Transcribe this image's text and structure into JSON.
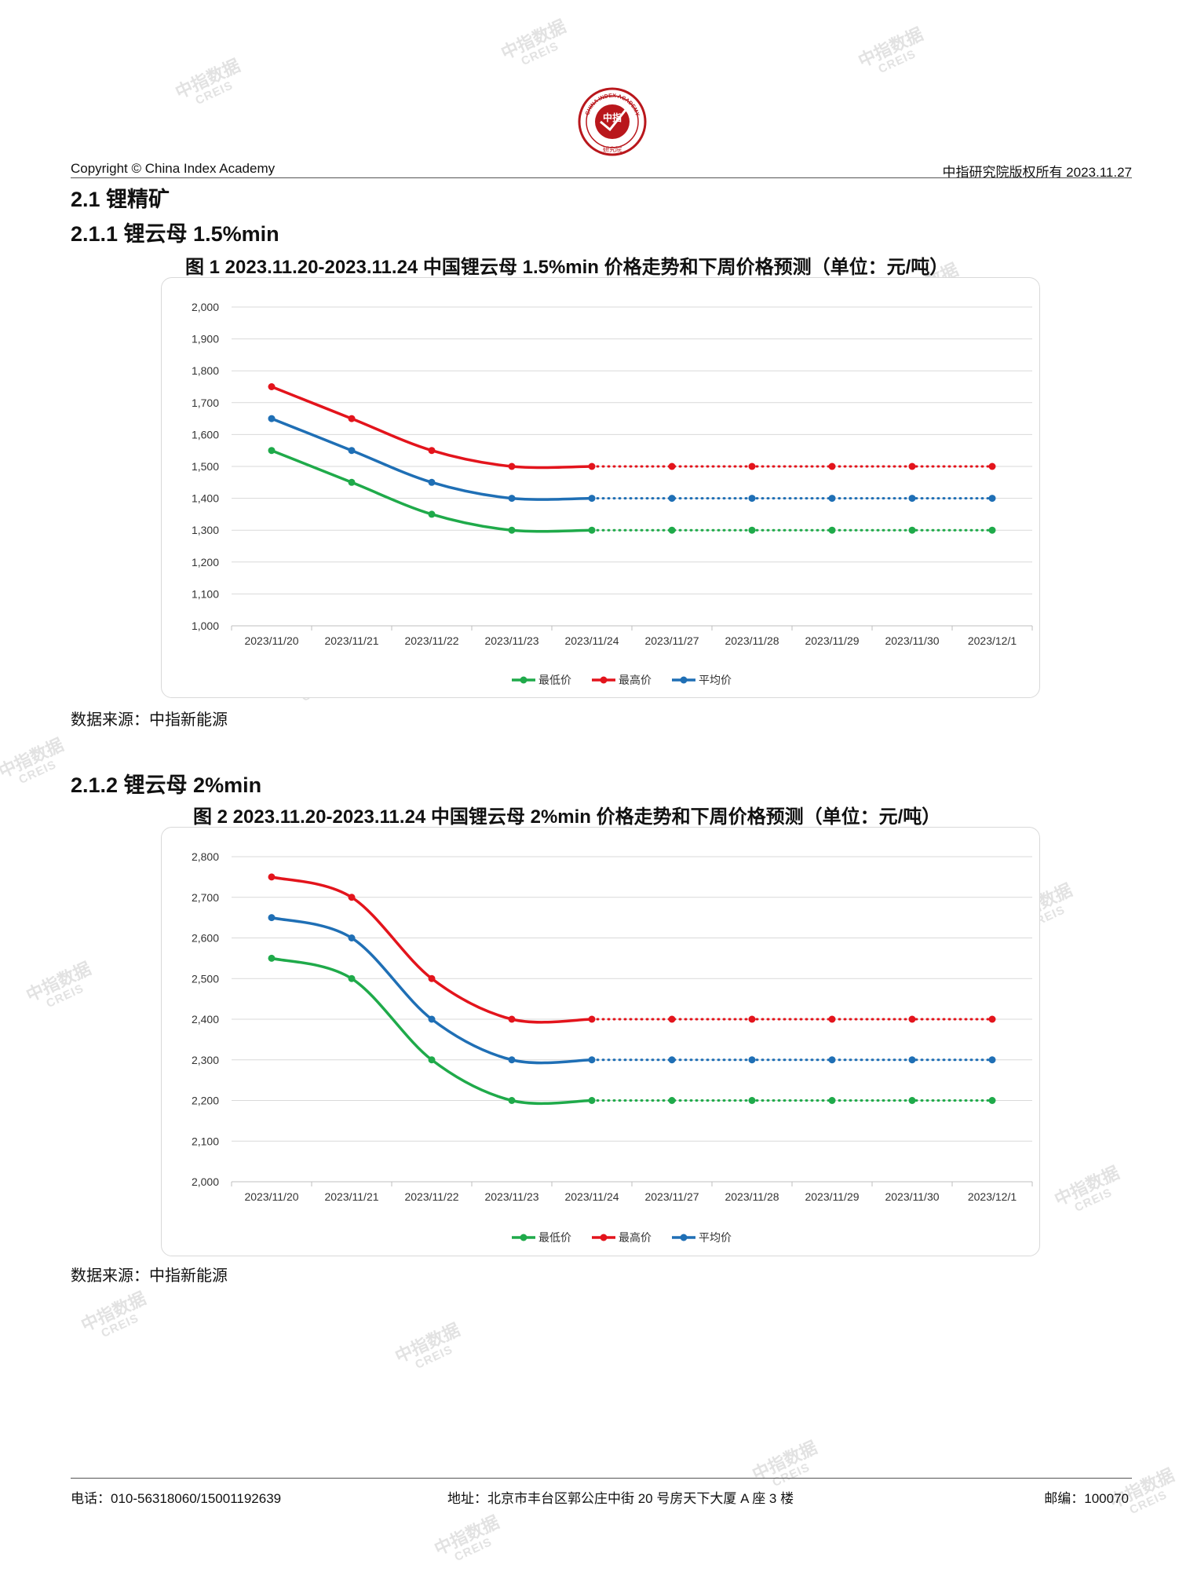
{
  "header": {
    "copyright": "Copyright © China Index Academy",
    "rights": "中指研究院版权所有 2023.11.27",
    "logo_top_text": "CHINA INDEX ACADEMY",
    "logo_center_text": "中指",
    "logo_bottom_text": "研究院"
  },
  "watermark": {
    "line1": "中指数据",
    "line2": "CREIS"
  },
  "section": {
    "title": "2.1 锂精矿",
    "sub1": "2.1.1 锂云母 1.5%min",
    "sub2": "2.1.2 锂云母 2%min"
  },
  "figures": [
    {
      "title": "图 1 2023.11.20-2023.11.24 中国锂云母 1.5%min 价格走势和下周价格预测（单位：元/吨）",
      "source": "数据来源：中指新能源"
    },
    {
      "title": "图 2 2023.11.20-2023.11.24 中国锂云母 2%min 价格走势和下周价格预测（单位：元/吨）",
      "source": "数据来源：中指新能源"
    }
  ],
  "chart_data": [
    {
      "type": "line",
      "categories": [
        "2023/11/20",
        "2023/11/21",
        "2023/11/22",
        "2023/11/23",
        "2023/11/24",
        "2023/11/27",
        "2023/11/28",
        "2023/11/29",
        "2023/11/30",
        "2023/12/1"
      ],
      "ylim": [
        1000,
        2000
      ],
      "yticks": [
        "1,000",
        "1,100",
        "1,200",
        "1,300",
        "1,400",
        "1,500",
        "1,600",
        "1,700",
        "1,800",
        "1,900",
        "2,000"
      ],
      "ytick_values": [
        1000,
        1100,
        1200,
        1300,
        1400,
        1500,
        1600,
        1700,
        1800,
        1900,
        2000
      ],
      "forecast_start_index": 4,
      "grid": true,
      "legend_position": "bottom",
      "series": [
        {
          "name": "最低价",
          "color": "#1faa4a",
          "values": [
            1550,
            1450,
            1350,
            1300,
            1300,
            1300,
            1300,
            1300,
            1300,
            1300
          ]
        },
        {
          "name": "最高价",
          "color": "#e3141c",
          "values": [
            1750,
            1650,
            1550,
            1500,
            1500,
            1500,
            1500,
            1500,
            1500,
            1500
          ]
        },
        {
          "name": "平均价",
          "color": "#1f6fb5",
          "values": [
            1650,
            1550,
            1450,
            1400,
            1400,
            1400,
            1400,
            1400,
            1400,
            1400
          ]
        }
      ]
    },
    {
      "type": "line",
      "categories": [
        "2023/11/20",
        "2023/11/21",
        "2023/11/22",
        "2023/11/23",
        "2023/11/24",
        "2023/11/27",
        "2023/11/28",
        "2023/11/29",
        "2023/11/30",
        "2023/12/1"
      ],
      "ylim": [
        2000,
        2800
      ],
      "yticks": [
        "2,000",
        "2,100",
        "2,200",
        "2,300",
        "2,400",
        "2,500",
        "2,600",
        "2,700",
        "2,800"
      ],
      "ytick_values": [
        2000,
        2100,
        2200,
        2300,
        2400,
        2500,
        2600,
        2700,
        2800
      ],
      "forecast_start_index": 4,
      "grid": true,
      "legend_position": "bottom",
      "series": [
        {
          "name": "最低价",
          "color": "#1faa4a",
          "values": [
            2550,
            2500,
            2300,
            2200,
            2200,
            2200,
            2200,
            2200,
            2200,
            2200
          ]
        },
        {
          "name": "最高价",
          "color": "#e3141c",
          "values": [
            2750,
            2700,
            2500,
            2400,
            2400,
            2400,
            2400,
            2400,
            2400,
            2400
          ]
        },
        {
          "name": "平均价",
          "color": "#1f6fb5",
          "values": [
            2650,
            2600,
            2400,
            2300,
            2300,
            2300,
            2300,
            2300,
            2300,
            2300
          ]
        }
      ]
    }
  ],
  "footer": {
    "phone": "电话：010-56318060/15001192639",
    "address": "地址：北京市丰台区郭公庄中街 20 号房天下大厦 A 座 3 楼",
    "postcode": "邮编：100070"
  }
}
